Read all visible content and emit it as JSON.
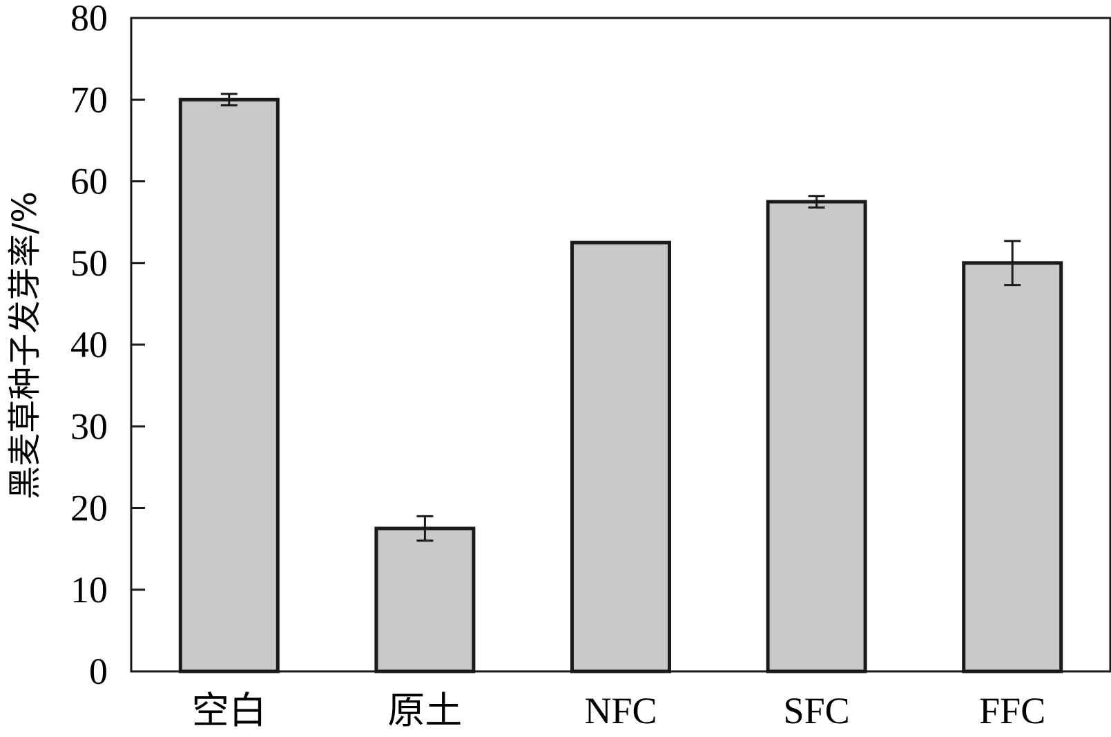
{
  "chart_data": {
    "type": "bar",
    "ylabel": "黑麦草种子发芽率/%",
    "xlabel": "",
    "ylim": [
      0,
      80
    ],
    "yticks": [
      0,
      10,
      20,
      30,
      40,
      50,
      60,
      70,
      80
    ],
    "categories": [
      "空白",
      "原土",
      "NFC",
      "SFC",
      "FFC"
    ],
    "values": [
      70,
      17.5,
      52.5,
      57.5,
      50
    ],
    "errors": [
      0.7,
      1.5,
      0,
      0.7,
      2.7
    ],
    "bar_color": "#c8c8c8",
    "bar_edge_color": "#1a1a1a",
    "grid": false,
    "legend": "none"
  }
}
